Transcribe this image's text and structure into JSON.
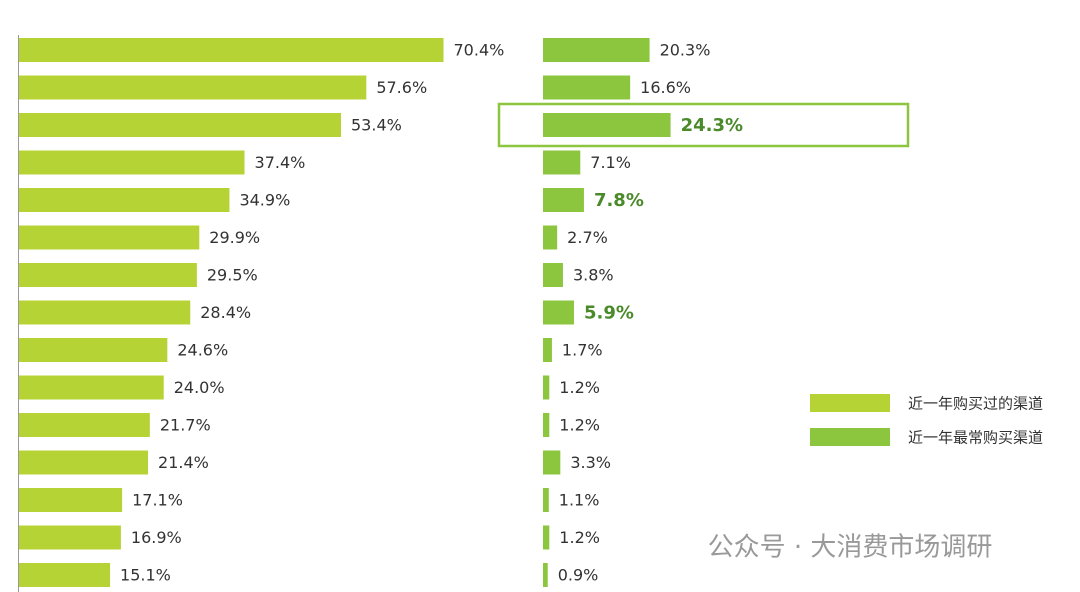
{
  "chart_data": {
    "type": "bar",
    "categories": [
      null,
      null,
      null,
      null,
      null,
      null,
      null,
      null,
      null,
      null,
      null,
      null,
      null,
      null,
      null
    ],
    "series": [
      {
        "name": "近一年购买过的渠道",
        "color": "#b5d334",
        "values": [
          70.4,
          57.6,
          53.4,
          37.4,
          34.9,
          29.9,
          29.5,
          28.4,
          24.6,
          24.0,
          21.7,
          21.4,
          17.1,
          16.9,
          15.1
        ],
        "value_labels": [
          "70.4%",
          "57.6%",
          "53.4%",
          "37.4%",
          "34.9%",
          "29.9%",
          "29.5%",
          "28.4%",
          "24.6%",
          "24.0%",
          "21.7%",
          "21.4%",
          "17.1%",
          "16.9%",
          "15.1%"
        ]
      },
      {
        "name": "近一年最常购买渠道",
        "color": "#8cc63f",
        "values": [
          20.3,
          16.6,
          24.3,
          7.1,
          7.8,
          2.7,
          3.8,
          5.9,
          1.7,
          1.2,
          1.2,
          3.3,
          1.1,
          1.2,
          0.9
        ],
        "value_labels": [
          "20.3%",
          "16.6%",
          "24.3%",
          "7.1%",
          "7.8%",
          "2.7%",
          "3.8%",
          "5.9%",
          "1.7%",
          "1.2%",
          "1.2%",
          "3.3%",
          "1.1%",
          "1.2%",
          "0.9%"
        ],
        "highlighted": [
          2,
          4,
          7
        ],
        "boxed": [
          2
        ]
      }
    ],
    "annotation": "公众号 · 大消费市场调研"
  }
}
